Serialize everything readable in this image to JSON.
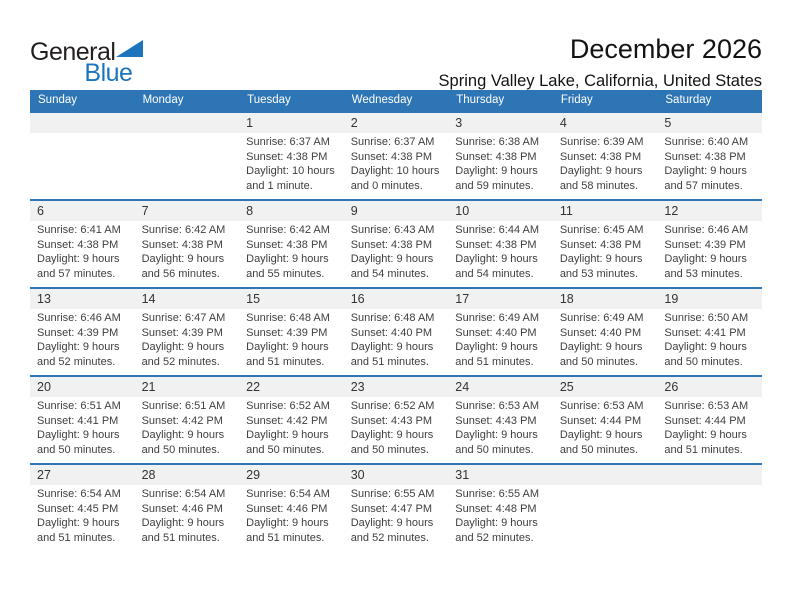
{
  "logo": {
    "general": "General",
    "blue": "Blue"
  },
  "header": {
    "title": "December 2026",
    "subtitle": "Spring Valley Lake, California, United States"
  },
  "colors": {
    "header_blue": "#2E75B5",
    "row_band_gray": "#F1F1F1",
    "logo_blue": "#1C75BC",
    "text_dark": "#3F3F3F"
  },
  "calendar": {
    "weekday_headers": [
      "Sunday",
      "Monday",
      "Tuesday",
      "Wednesday",
      "Thursday",
      "Friday",
      "Saturday"
    ],
    "labels": {
      "sunrise": "Sunrise:",
      "sunset": "Sunset:",
      "daylight": "Daylight:"
    },
    "weeks": [
      [
        null,
        null,
        {
          "day": "1",
          "sunrise": "6:37 AM",
          "sunset": "4:38 PM",
          "daylight": "10 hours and 1 minute."
        },
        {
          "day": "2",
          "sunrise": "6:37 AM",
          "sunset": "4:38 PM",
          "daylight": "10 hours and 0 minutes."
        },
        {
          "day": "3",
          "sunrise": "6:38 AM",
          "sunset": "4:38 PM",
          "daylight": "9 hours and 59 minutes."
        },
        {
          "day": "4",
          "sunrise": "6:39 AM",
          "sunset": "4:38 PM",
          "daylight": "9 hours and 58 minutes."
        },
        {
          "day": "5",
          "sunrise": "6:40 AM",
          "sunset": "4:38 PM",
          "daylight": "9 hours and 57 minutes."
        }
      ],
      [
        {
          "day": "6",
          "sunrise": "6:41 AM",
          "sunset": "4:38 PM",
          "daylight": "9 hours and 57 minutes."
        },
        {
          "day": "7",
          "sunrise": "6:42 AM",
          "sunset": "4:38 PM",
          "daylight": "9 hours and 56 minutes."
        },
        {
          "day": "8",
          "sunrise": "6:42 AM",
          "sunset": "4:38 PM",
          "daylight": "9 hours and 55 minutes."
        },
        {
          "day": "9",
          "sunrise": "6:43 AM",
          "sunset": "4:38 PM",
          "daylight": "9 hours and 54 minutes."
        },
        {
          "day": "10",
          "sunrise": "6:44 AM",
          "sunset": "4:38 PM",
          "daylight": "9 hours and 54 minutes."
        },
        {
          "day": "11",
          "sunrise": "6:45 AM",
          "sunset": "4:38 PM",
          "daylight": "9 hours and 53 minutes."
        },
        {
          "day": "12",
          "sunrise": "6:46 AM",
          "sunset": "4:39 PM",
          "daylight": "9 hours and 53 minutes."
        }
      ],
      [
        {
          "day": "13",
          "sunrise": "6:46 AM",
          "sunset": "4:39 PM",
          "daylight": "9 hours and 52 minutes."
        },
        {
          "day": "14",
          "sunrise": "6:47 AM",
          "sunset": "4:39 PM",
          "daylight": "9 hours and 52 minutes."
        },
        {
          "day": "15",
          "sunrise": "6:48 AM",
          "sunset": "4:39 PM",
          "daylight": "9 hours and 51 minutes."
        },
        {
          "day": "16",
          "sunrise": "6:48 AM",
          "sunset": "4:40 PM",
          "daylight": "9 hours and 51 minutes."
        },
        {
          "day": "17",
          "sunrise": "6:49 AM",
          "sunset": "4:40 PM",
          "daylight": "9 hours and 51 minutes."
        },
        {
          "day": "18",
          "sunrise": "6:49 AM",
          "sunset": "4:40 PM",
          "daylight": "9 hours and 50 minutes."
        },
        {
          "day": "19",
          "sunrise": "6:50 AM",
          "sunset": "4:41 PM",
          "daylight": "9 hours and 50 minutes."
        }
      ],
      [
        {
          "day": "20",
          "sunrise": "6:51 AM",
          "sunset": "4:41 PM",
          "daylight": "9 hours and 50 minutes."
        },
        {
          "day": "21",
          "sunrise": "6:51 AM",
          "sunset": "4:42 PM",
          "daylight": "9 hours and 50 minutes."
        },
        {
          "day": "22",
          "sunrise": "6:52 AM",
          "sunset": "4:42 PM",
          "daylight": "9 hours and 50 minutes."
        },
        {
          "day": "23",
          "sunrise": "6:52 AM",
          "sunset": "4:43 PM",
          "daylight": "9 hours and 50 minutes."
        },
        {
          "day": "24",
          "sunrise": "6:53 AM",
          "sunset": "4:43 PM",
          "daylight": "9 hours and 50 minutes."
        },
        {
          "day": "25",
          "sunrise": "6:53 AM",
          "sunset": "4:44 PM",
          "daylight": "9 hours and 50 minutes."
        },
        {
          "day": "26",
          "sunrise": "6:53 AM",
          "sunset": "4:44 PM",
          "daylight": "9 hours and 51 minutes."
        }
      ],
      [
        {
          "day": "27",
          "sunrise": "6:54 AM",
          "sunset": "4:45 PM",
          "daylight": "9 hours and 51 minutes."
        },
        {
          "day": "28",
          "sunrise": "6:54 AM",
          "sunset": "4:46 PM",
          "daylight": "9 hours and 51 minutes."
        },
        {
          "day": "29",
          "sunrise": "6:54 AM",
          "sunset": "4:46 PM",
          "daylight": "9 hours and 51 minutes."
        },
        {
          "day": "30",
          "sunrise": "6:55 AM",
          "sunset": "4:47 PM",
          "daylight": "9 hours and 52 minutes."
        },
        {
          "day": "31",
          "sunrise": "6:55 AM",
          "sunset": "4:48 PM",
          "daylight": "9 hours and 52 minutes."
        },
        null,
        null
      ]
    ]
  }
}
